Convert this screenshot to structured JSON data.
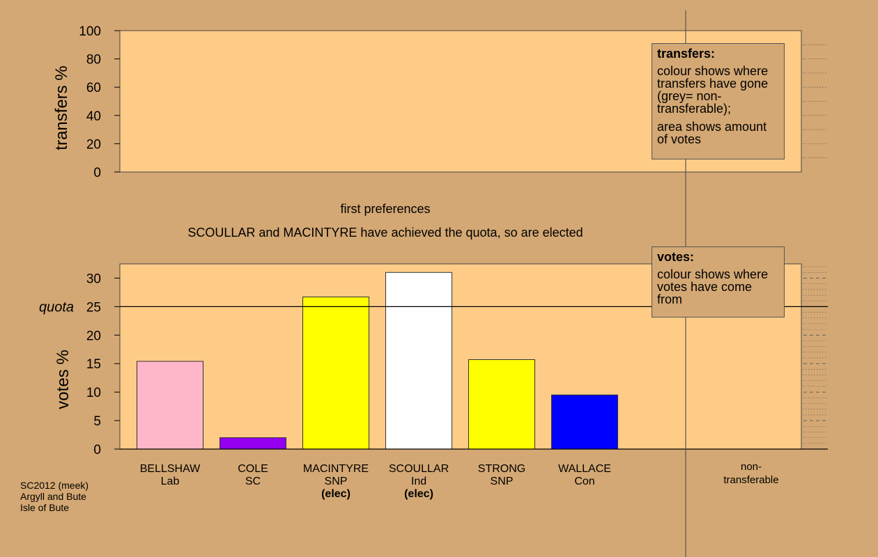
{
  "chart_data": [
    {
      "type": "bar",
      "panel": "transfers",
      "ylabel": "transfers %",
      "ylim": [
        0,
        100
      ],
      "yticks": [
        0,
        20,
        40,
        60,
        80,
        100
      ],
      "grid": true,
      "values": []
    },
    {
      "type": "bar",
      "panel": "votes",
      "title": "first preferences",
      "subtitle": "SCOULLAR and MACINTYRE have achieved the quota, so are elected",
      "ylabel": "votes %",
      "ylim": [
        0,
        32.5
      ],
      "yticks": [
        0,
        5,
        10,
        15,
        20,
        25,
        30
      ],
      "quota": {
        "label": "quota",
        "value": 25
      },
      "grid": true,
      "categories": [
        {
          "name": "BELLSHAW",
          "party": "Lab",
          "note": "",
          "value": 15.4,
          "color": "#ffb6c8"
        },
        {
          "name": "COLE",
          "party": "SC",
          "note": "",
          "value": 2.0,
          "color": "#9400ee"
        },
        {
          "name": "MACINTYRE",
          "party": "SNP",
          "note": "(elec)",
          "value": 26.7,
          "color": "#ffff00"
        },
        {
          "name": "SCOULLAR",
          "party": "Ind",
          "note": "(elec)",
          "value": 31.0,
          "color": "#ffffff"
        },
        {
          "name": "STRONG",
          "party": "SNP",
          "note": "",
          "value": 15.7,
          "color": "#ffff00"
        },
        {
          "name": "WALLACE",
          "party": "Con",
          "note": "",
          "value": 9.5,
          "color": "#0000ff"
        }
      ],
      "nontransferable": {
        "label_line1": "non-",
        "label_line2": "transferable",
        "value": 0
      }
    }
  ],
  "legend_transfers": {
    "title": "transfers:",
    "text1": "colour shows where transfers have gone (grey= non-transferable);",
    "text2": "area shows amount of votes"
  },
  "legend_votes": {
    "title": "votes:",
    "text1": "colour shows where votes have come from"
  },
  "caption": {
    "line1": "SC2012 (meek)",
    "line2": "Argyll and Bute",
    "line3": "Isle of Bute"
  },
  "colors": {
    "background": "#d4a874",
    "plot_area": "#ffcc88"
  }
}
